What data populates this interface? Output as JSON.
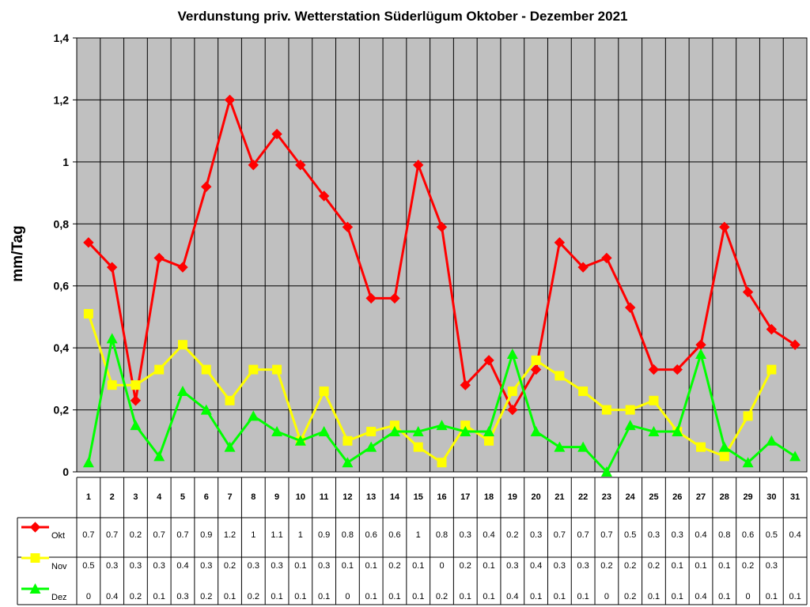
{
  "chart_data": {
    "type": "line",
    "title": "Verdunstung priv. Wetterstation Süderlügum Oktober - Dezember 2021",
    "ylabel": "mm/Tag",
    "xlabel": "",
    "ylim": [
      0,
      1.4
    ],
    "ytick_labels": [
      "0",
      "0,2",
      "0,4",
      "0,6",
      "0,8",
      "1",
      "1,2",
      "1,4"
    ],
    "grid": true,
    "legend": "data-table-left",
    "categories": [
      "1",
      "2",
      "3",
      "4",
      "5",
      "6",
      "7",
      "8",
      "9",
      "10",
      "11",
      "12",
      "13",
      "14",
      "15",
      "16",
      "17",
      "18",
      "19",
      "20",
      "21",
      "22",
      "23",
      "24",
      "25",
      "26",
      "27",
      "28",
      "29",
      "30",
      "31"
    ],
    "series": [
      {
        "name": "Okt",
        "color": "#ff0000",
        "marker": "diamond",
        "values": [
          0.74,
          0.66,
          0.23,
          0.69,
          0.66,
          0.92,
          1.2,
          0.99,
          1.09,
          0.99,
          0.89,
          0.79,
          0.56,
          0.56,
          0.99,
          0.79,
          0.28,
          0.36,
          0.2,
          0.33,
          0.74,
          0.66,
          0.69,
          0.53,
          0.33,
          0.33,
          0.41,
          0.79,
          0.58,
          0.46,
          0.41
        ],
        "table": [
          "0.7",
          "0.7",
          "0.2",
          "0.7",
          "0.7",
          "0.9",
          "1.2",
          "1",
          "1.1",
          "1",
          "0.9",
          "0.8",
          "0.6",
          "0.6",
          "1",
          "0.8",
          "0.3",
          "0.4",
          "0.2",
          "0.3",
          "0.7",
          "0.7",
          "0.7",
          "0.5",
          "0.3",
          "0.3",
          "0.4",
          "0.8",
          "0.6",
          "0.5",
          "0.4"
        ]
      },
      {
        "name": "Nov",
        "color": "#ffff00",
        "marker": "square",
        "values": [
          0.51,
          0.28,
          0.28,
          0.33,
          0.41,
          0.33,
          0.23,
          0.33,
          0.33,
          0.1,
          0.26,
          0.1,
          0.13,
          0.15,
          0.08,
          0.03,
          0.15,
          0.1,
          0.26,
          0.36,
          0.31,
          0.26,
          0.2,
          0.2,
          0.23,
          0.13,
          0.08,
          0.05,
          0.18,
          0.33,
          null
        ],
        "table": [
          "0.5",
          "0.3",
          "0.3",
          "0.3",
          "0.4",
          "0.3",
          "0.2",
          "0.3",
          "0.3",
          "0.1",
          "0.3",
          "0.1",
          "0.1",
          "0.2",
          "0.1",
          "0",
          "0.2",
          "0.1",
          "0.3",
          "0.4",
          "0.3",
          "0.3",
          "0.2",
          "0.2",
          "0.2",
          "0.1",
          "0.1",
          "0.1",
          "0.2",
          "0.3",
          ""
        ]
      },
      {
        "name": "Dez",
        "color": "#00ff00",
        "marker": "triangle",
        "values": [
          0.03,
          0.43,
          0.15,
          0.05,
          0.26,
          0.2,
          0.08,
          0.18,
          0.13,
          0.1,
          0.13,
          0.03,
          0.08,
          0.13,
          0.13,
          0.15,
          0.13,
          0.13,
          0.38,
          0.13,
          0.08,
          0.08,
          0.0,
          0.15,
          0.13,
          0.13,
          0.38,
          0.08,
          0.03,
          0.1,
          0.05
        ],
        "table": [
          "0",
          "0.4",
          "0.2",
          "0.1",
          "0.3",
          "0.2",
          "0.1",
          "0.2",
          "0.1",
          "0.1",
          "0.1",
          "0",
          "0.1",
          "0.1",
          "0.1",
          "0.2",
          "0.1",
          "0.1",
          "0.4",
          "0.1",
          "0.1",
          "0.1",
          "0",
          "0.2",
          "0.1",
          "0.1",
          "0.4",
          "0.1",
          "0",
          "0.1",
          "0.1"
        ]
      }
    ]
  }
}
